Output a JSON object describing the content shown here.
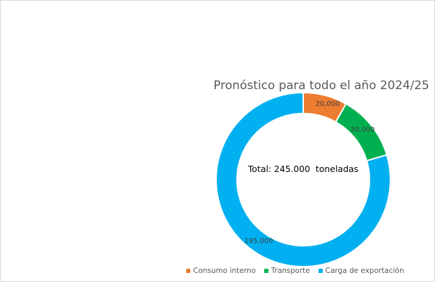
{
  "chart_data": {
    "type": "pie",
    "variant": "donut",
    "title": "Pronóstico para todo el año 2024/25",
    "center_text": "Total: 245.000  toneladas",
    "categories": [
      "Consumo interno",
      "Transporte",
      "Carga de exportación"
    ],
    "values": [
      20000,
      30000,
      195000
    ],
    "data_labels": [
      "20,000",
      "30,000",
      "195,000"
    ],
    "colors": [
      "#ED7D31",
      "#00B050",
      "#00B0F0"
    ],
    "legend_position": "bottom"
  }
}
